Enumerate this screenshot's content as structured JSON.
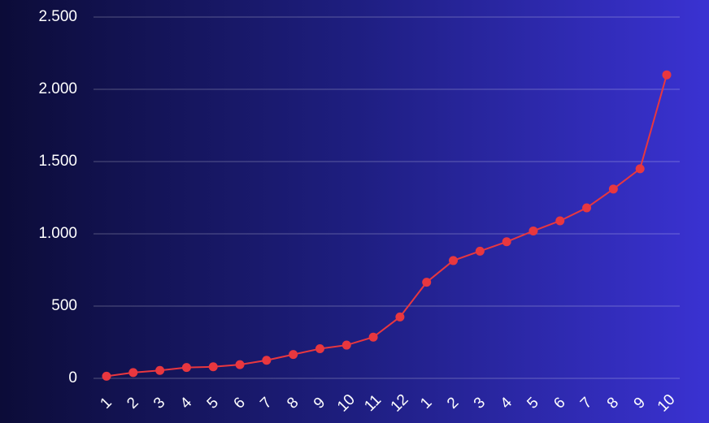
{
  "chart_data": {
    "type": "line",
    "categories": [
      "1",
      "2",
      "3",
      "4",
      "5",
      "6",
      "7",
      "8",
      "9",
      "10",
      "11",
      "12",
      "1",
      "2",
      "3",
      "4",
      "5",
      "6",
      "7",
      "8",
      "9",
      "10"
    ],
    "series": [
      {
        "color": "#e8373f",
        "values": [
          15,
          40,
          55,
          75,
          80,
          95,
          125,
          165,
          205,
          230,
          285,
          425,
          665,
          815,
          880,
          945,
          1020,
          1090,
          1180,
          1310,
          1450,
          2100
        ]
      }
    ],
    "ylim": [
      0,
      2500
    ],
    "yticks": [
      0,
      500,
      {
        "value": 1000,
        "label": "1.000"
      },
      {
        "value": 1500,
        "label": "1.500"
      },
      {
        "value": 2000,
        "label": "2.000"
      },
      {
        "value": 2500,
        "label": "2.500"
      }
    ],
    "grid": true
  }
}
